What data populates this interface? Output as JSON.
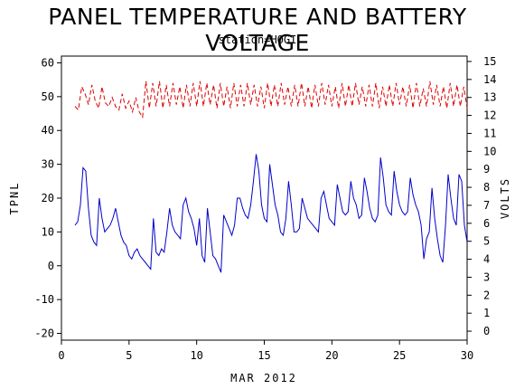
{
  "chart_data": {
    "type": "line",
    "title": "PANEL TEMPERATURE AND BATTERY VOLTAGE",
    "subtitle": "station=HOGI",
    "xlabel": "MAR 2012",
    "ylabel_left": "TPNL",
    "ylabel_right": "VOLTS",
    "xlim": [
      0,
      30
    ],
    "ylim_left": [
      -22,
      62
    ],
    "ylim_right": [
      -0.5,
      15.3
    ],
    "x_ticks": [
      0,
      5,
      10,
      15,
      20,
      25,
      30
    ],
    "y_ticks_left": [
      -20,
      -10,
      0,
      10,
      20,
      30,
      40,
      50,
      60
    ],
    "y_ticks_right": [
      0,
      1,
      2,
      3,
      4,
      5,
      6,
      7,
      8,
      9,
      10,
      11,
      12,
      13,
      14,
      15
    ],
    "series": [
      {
        "axis": "left",
        "color": "#0000cc",
        "style": "solid",
        "x": [
          1.0,
          1.2,
          1.4,
          1.6,
          1.8,
          2.0,
          2.2,
          2.4,
          2.6,
          2.8,
          3.0,
          3.2,
          3.4,
          3.6,
          3.8,
          4.0,
          4.2,
          4.4,
          4.6,
          4.8,
          5.0,
          5.2,
          5.4,
          5.6,
          5.8,
          6.0,
          6.2,
          6.4,
          6.6,
          6.8,
          7.0,
          7.2,
          7.4,
          7.6,
          7.8,
          8.0,
          8.2,
          8.4,
          8.6,
          8.8,
          9.0,
          9.2,
          9.4,
          9.6,
          9.8,
          10.0,
          10.2,
          10.4,
          10.6,
          10.8,
          11.0,
          11.2,
          11.4,
          11.6,
          11.8,
          12.0,
          12.2,
          12.4,
          12.6,
          12.8,
          13.0,
          13.2,
          13.4,
          13.6,
          13.8,
          14.0,
          14.2,
          14.4,
          14.6,
          14.8,
          15.0,
          15.2,
          15.4,
          15.6,
          15.8,
          16.0,
          16.2,
          16.4,
          16.6,
          16.8,
          17.0,
          17.2,
          17.4,
          17.6,
          17.8,
          18.0,
          18.2,
          18.4,
          18.6,
          18.8,
          19.0,
          19.2,
          19.4,
          19.6,
          19.8,
          20.0,
          20.2,
          20.4,
          20.6,
          20.8,
          21.0,
          21.2,
          21.4,
          21.6,
          21.8,
          22.0,
          22.2,
          22.4,
          22.6,
          22.8,
          23.0,
          23.2,
          23.4,
          23.6,
          23.8,
          24.0,
          24.2,
          24.4,
          24.6,
          24.8,
          25.0,
          25.2,
          25.4,
          25.6,
          25.8,
          26.0,
          26.2,
          26.4,
          26.6,
          26.8,
          27.0,
          27.2,
          27.4,
          27.6,
          27.8,
          28.0,
          28.2,
          28.4,
          28.6,
          28.8,
          29.0,
          29.2,
          29.4,
          29.6,
          29.8,
          30.0
        ],
        "y": [
          12,
          13,
          18,
          29,
          28,
          17,
          9,
          7,
          6,
          20,
          14,
          10,
          11,
          12,
          14,
          17,
          13,
          9,
          7,
          6,
          3,
          2,
          4,
          5,
          3,
          2,
          1,
          0,
          -1,
          14,
          4,
          3,
          5,
          4,
          10,
          17,
          12,
          10,
          9,
          8,
          18,
          20,
          16,
          14,
          11,
          6,
          14,
          3,
          1,
          17,
          10,
          3,
          2,
          0,
          -2,
          15,
          13,
          11,
          9,
          12,
          20,
          20,
          17,
          15,
          14,
          18,
          25,
          33,
          28,
          18,
          14,
          13,
          30,
          24,
          18,
          15,
          10,
          9,
          14,
          25,
          18,
          10,
          10,
          11,
          20,
          17,
          14,
          13,
          12,
          11,
          10,
          20,
          22,
          18,
          14,
          13,
          12,
          24,
          20,
          16,
          15,
          16,
          25,
          20,
          18,
          14,
          15,
          26,
          22,
          17,
          14,
          13,
          15,
          32,
          26,
          18,
          16,
          15,
          28,
          22,
          18,
          16,
          15,
          16,
          26,
          21,
          18,
          16,
          12,
          2,
          8,
          10,
          23,
          14,
          8,
          3,
          1,
          12,
          27,
          20,
          14,
          12,
          27,
          25,
          12,
          7
        ]
      },
      {
        "axis": "right",
        "color": "#dd0000",
        "style": "dashed",
        "x": [
          1.0,
          1.25,
          1.5,
          1.75,
          2.0,
          2.25,
          2.5,
          2.75,
          3.0,
          3.25,
          3.5,
          3.75,
          4.0,
          4.25,
          4.5,
          4.75,
          5.0,
          5.25,
          5.5,
          5.75,
          6.0,
          6.25,
          6.5,
          6.75,
          7.0,
          7.25,
          7.5,
          7.75,
          8.0,
          8.25,
          8.5,
          8.75,
          9.0,
          9.25,
          9.5,
          9.75,
          10.0,
          10.25,
          10.5,
          10.75,
          11.0,
          11.25,
          11.5,
          11.75,
          12.0,
          12.25,
          12.5,
          12.75,
          13.0,
          13.25,
          13.5,
          13.75,
          14.0,
          14.25,
          14.5,
          14.75,
          15.0,
          15.25,
          15.5,
          15.75,
          16.0,
          16.25,
          16.5,
          16.75,
          17.0,
          17.25,
          17.5,
          17.75,
          18.0,
          18.25,
          18.5,
          18.75,
          19.0,
          19.25,
          19.5,
          19.75,
          20.0,
          20.25,
          20.5,
          20.75,
          21.0,
          21.25,
          21.5,
          21.75,
          22.0,
          22.25,
          22.5,
          22.75,
          23.0,
          23.25,
          23.5,
          23.75,
          24.0,
          24.25,
          24.5,
          24.75,
          25.0,
          25.25,
          25.5,
          25.75,
          26.0,
          26.25,
          26.5,
          26.75,
          27.0,
          27.25,
          27.5,
          27.75,
          28.0,
          28.25,
          28.5,
          28.75,
          29.0,
          29.25,
          29.5,
          29.75,
          30.0
        ],
        "y": [
          12.5,
          12.3,
          13.6,
          13.2,
          12.6,
          13.7,
          12.8,
          12.4,
          13.6,
          12.7,
          12.5,
          13.0,
          12.5,
          12.3,
          13.2,
          12.4,
          12.8,
          12.2,
          13.0,
          12.2,
          11.9,
          13.9,
          12.4,
          13.8,
          12.5,
          13.9,
          12.4,
          13.7,
          12.5,
          13.8,
          12.6,
          13.6,
          12.4,
          13.7,
          12.5,
          13.8,
          12.5,
          13.9,
          12.5,
          13.8,
          12.6,
          13.7,
          12.4,
          13.8,
          12.5,
          13.6,
          12.4,
          13.8,
          12.5,
          13.7,
          12.5,
          13.8,
          12.6,
          13.7,
          12.5,
          13.6,
          12.4,
          13.8,
          12.5,
          13.7,
          12.5,
          13.8,
          12.6,
          13.6,
          12.5,
          13.7,
          12.5,
          13.8,
          12.5,
          13.6,
          12.4,
          13.7,
          12.5,
          13.8,
          12.6,
          13.7,
          12.5,
          13.6,
          12.4,
          13.8,
          12.5,
          13.7,
          12.5,
          13.8,
          12.6,
          13.6,
          12.5,
          13.7,
          12.5,
          13.8,
          12.4,
          13.6,
          12.5,
          13.7,
          12.5,
          13.8,
          12.6,
          13.6,
          12.5,
          13.7,
          12.4,
          13.8,
          12.5,
          13.5,
          12.5,
          13.9,
          12.6,
          13.7,
          12.5,
          13.6,
          12.4,
          13.8,
          12.5,
          13.7,
          12.5,
          13.6,
          12.4
        ]
      }
    ]
  }
}
